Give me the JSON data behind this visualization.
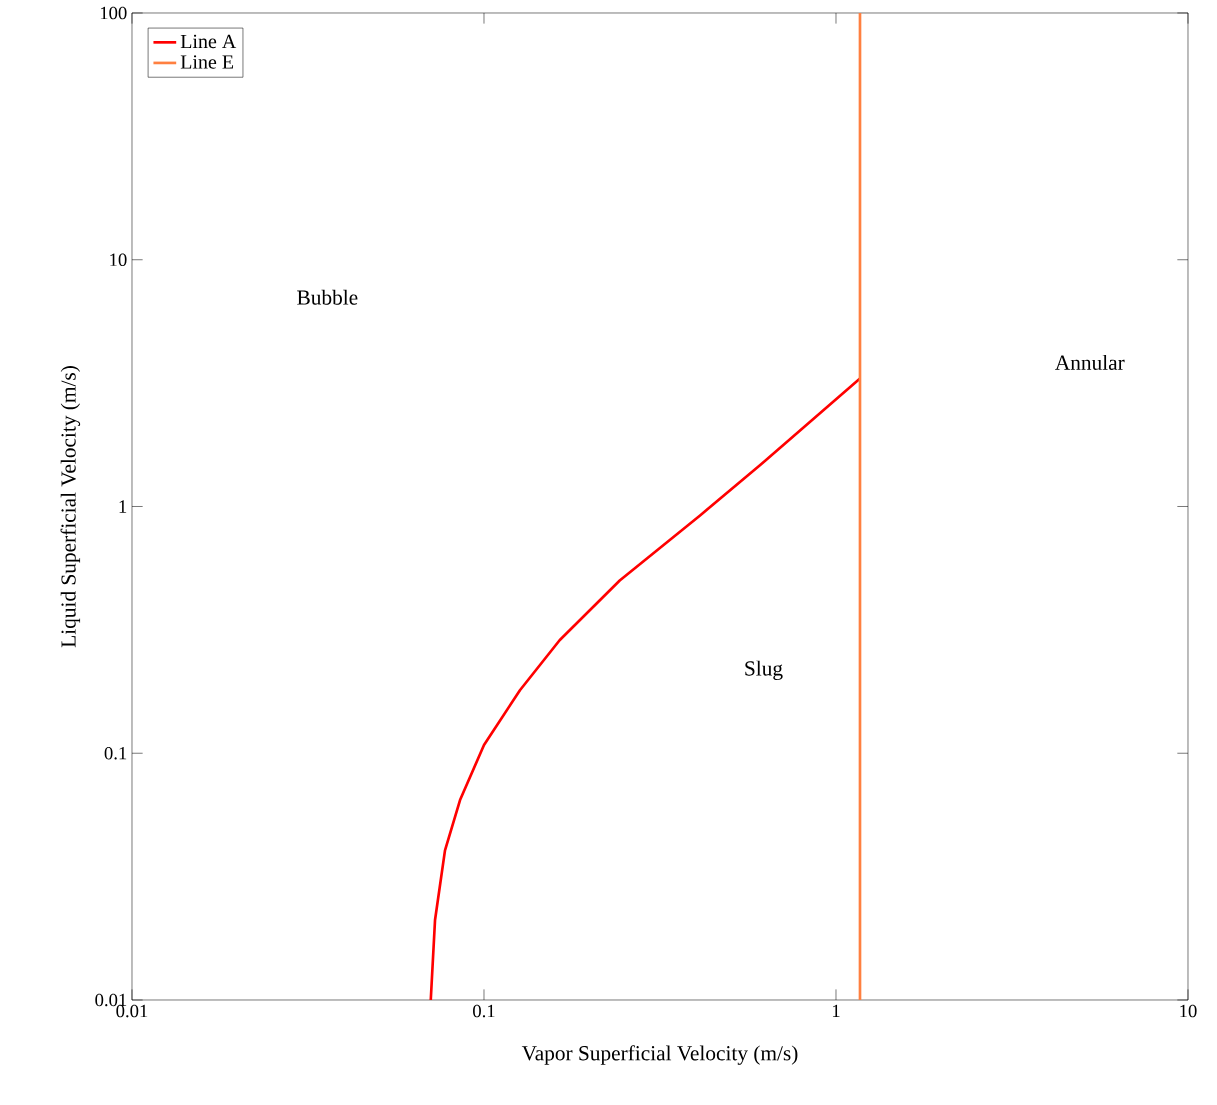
{
  "chart_data": {
    "type": "line",
    "xlabel": "Vapor Superficial Velocity (m/s)",
    "ylabel": "Liquid Superficial Velocity (m/s)",
    "series": [
      {
        "name": "Line A",
        "color": "#ff0000",
        "x": [
          0.0706,
          0.0726,
          0.0775,
          0.0855,
          0.1,
          0.1265,
          0.164,
          0.243,
          0.411,
          0.608,
          1.17
        ],
        "values": [
          0.01,
          0.0211,
          0.0404,
          0.0646,
          0.108,
          0.18,
          0.287,
          0.501,
          0.92,
          1.47,
          3.3
        ]
      },
      {
        "name": "Line E",
        "color": "#ff8040",
        "x": [
          1.17,
          1.17
        ],
        "values": [
          0.01,
          100
        ]
      }
    ],
    "xlim": [
      0.01,
      10
    ],
    "ylim": [
      0.01,
      100
    ],
    "xticks": [
      0.01,
      0.1,
      1,
      10
    ],
    "yticks": [
      0.01,
      0.1,
      1,
      10,
      100
    ],
    "log": "xy",
    "legend": "top left",
    "line_style": "solid",
    "annotations": [
      "Bubble",
      "Slug",
      "Annular"
    ]
  }
}
